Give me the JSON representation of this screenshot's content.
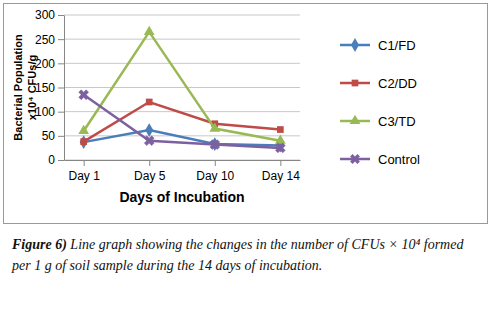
{
  "chart_data": {
    "type": "line",
    "y_label": [
      "Bacterial Population",
      "x10⁴ CFUs/g"
    ],
    "x_label": "Days of Incubation",
    "categories": [
      "Day 1",
      "Day 5",
      "Day 10",
      "Day 14"
    ],
    "series": [
      {
        "name": "C1/FD",
        "color": "#4a7ebb",
        "marker": "diamond",
        "values": [
          37,
          62,
          33,
          30
        ]
      },
      {
        "name": "C2/DD",
        "color": "#be4b48",
        "marker": "square",
        "values": [
          38,
          120,
          75,
          63
        ]
      },
      {
        "name": "C3/TD",
        "color": "#98b954",
        "marker": "triangle",
        "values": [
          60,
          265,
          65,
          40
        ]
      },
      {
        "name": "Control",
        "color": "#7d60a0",
        "marker": "x",
        "values": [
          135,
          40,
          32,
          25
        ]
      }
    ],
    "ylim": [
      0,
      300
    ],
    "yticks": [
      0,
      50,
      100,
      150,
      200,
      250,
      300
    ],
    "grid": true,
    "legend": "right",
    "caption": {
      "label": "Figure 6)",
      "text": "Line graph showing the changes in the number of CFUs × 10⁴ formed per 1 g of soil sample during the 14 days of incubation."
    }
  }
}
